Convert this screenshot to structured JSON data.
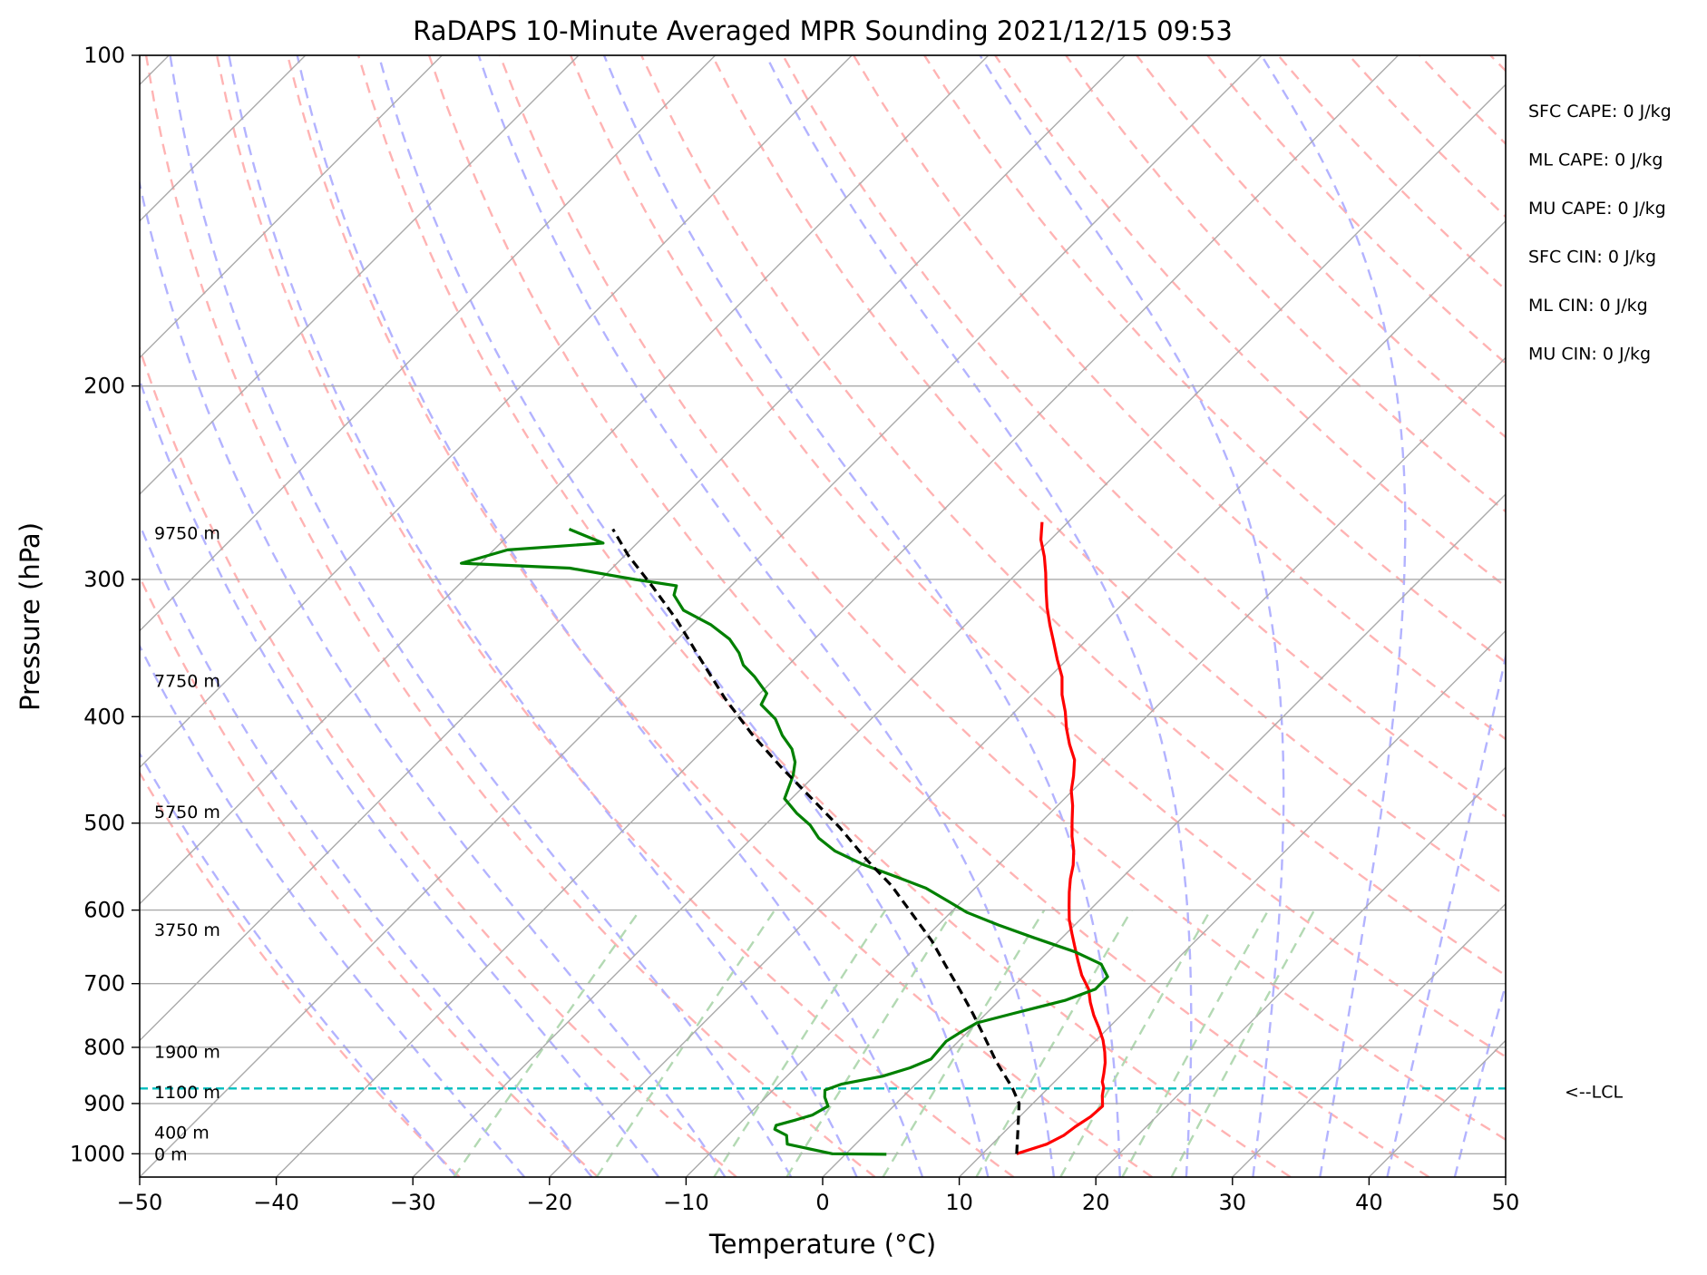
{
  "chart_data": {
    "type": "line",
    "title": "RaDAPS 10-Minute Averaged MPR Sounding 2021/12/15 09:53",
    "xlabel": "Temperature (°C)",
    "ylabel": "Pressure (hPa)",
    "xlim": [
      -50,
      50
    ],
    "ylim": [
      1050,
      100
    ],
    "y_scale": "log",
    "skew_t": true,
    "grid": true,
    "x_ticks": [
      -50,
      -40,
      -30,
      -20,
      -10,
      0,
      10,
      20,
      30,
      40,
      50
    ],
    "x_tick_labels": [
      "−50",
      "−40",
      "−30",
      "−20",
      "−10",
      "0",
      "10",
      "20",
      "30",
      "40",
      "50"
    ],
    "y_ticks": [
      1000,
      900,
      800,
      700,
      600,
      500,
      400,
      300,
      200,
      100
    ],
    "y_tick_labels": [
      "1000",
      "900",
      "800",
      "700",
      "600",
      "500",
      "400",
      "300",
      "200",
      "100"
    ],
    "series": [
      {
        "kind": "temperature",
        "color": "#ff0000",
        "points": [
          [
            12.5,
            1000
          ],
          [
            14.0,
            980
          ],
          [
            14.6,
            962
          ],
          [
            14.8,
            945
          ],
          [
            15.2,
            925
          ],
          [
            15.3,
            905
          ],
          [
            14.5,
            885
          ],
          [
            14.0,
            870
          ],
          [
            13.5,
            860
          ],
          [
            13.0,
            845
          ],
          [
            12.3,
            826
          ],
          [
            11.5,
            808
          ],
          [
            10.5,
            788
          ],
          [
            9.3,
            768
          ],
          [
            8.0,
            748
          ],
          [
            6.8,
            728
          ],
          [
            5.7,
            708
          ],
          [
            4.2,
            688
          ],
          [
            2.9,
            668
          ],
          [
            1.6,
            648
          ],
          [
            0.4,
            630
          ],
          [
            -0.8,
            612
          ],
          [
            -1.8,
            595
          ],
          [
            -2.8,
            578
          ],
          [
            -3.7,
            562
          ],
          [
            -4.5,
            546
          ],
          [
            -5.5,
            530
          ],
          [
            -6.7,
            514
          ],
          [
            -7.8,
            498
          ],
          [
            -8.9,
            482
          ],
          [
            -10.1,
            467
          ],
          [
            -11.0,
            453
          ],
          [
            -12.1,
            438
          ],
          [
            -13.6,
            424
          ],
          [
            -15.0,
            410
          ],
          [
            -16.3,
            396
          ],
          [
            -17.8,
            382
          ],
          [
            -19.1,
            368
          ],
          [
            -20.7,
            355
          ],
          [
            -22.4,
            341
          ],
          [
            -23.8,
            330
          ],
          [
            -25.3,
            318
          ],
          [
            -26.6,
            307
          ],
          [
            -27.9,
            296
          ],
          [
            -29.2,
            286
          ],
          [
            -30.7,
            276
          ],
          [
            -31.9,
            266
          ]
        ]
      },
      {
        "kind": "dewpoint",
        "color": "#008000",
        "points": [
          [
            3.0,
            1001
          ],
          [
            -1.0,
            1000
          ],
          [
            -5.0,
            980
          ],
          [
            -5.7,
            962
          ],
          [
            -7.0,
            950
          ],
          [
            -7.2,
            942
          ],
          [
            -6.2,
            932
          ],
          [
            -5.3,
            922
          ],
          [
            -4.8,
            905
          ],
          [
            -5.7,
            888
          ],
          [
            -6.2,
            875
          ],
          [
            -5.4,
            864
          ],
          [
            -3.0,
            850
          ],
          [
            -1.6,
            835
          ],
          [
            -0.7,
            820
          ],
          [
            -0.8,
            805
          ],
          [
            -0.9,
            790
          ],
          [
            -0.5,
            775
          ],
          [
            0.0,
            760
          ],
          [
            2.0,
            745
          ],
          [
            4.8,
            725
          ],
          [
            6.2,
            708
          ],
          [
            6.2,
            690
          ],
          [
            4.8,
            672
          ],
          [
            2.0,
            655
          ],
          [
            -2.0,
            636
          ],
          [
            -5.6,
            619
          ],
          [
            -8.8,
            603
          ],
          [
            -11.0,
            589
          ],
          [
            -13.6,
            573
          ],
          [
            -16.5,
            560
          ],
          [
            -20.0,
            545
          ],
          [
            -23.0,
            530
          ],
          [
            -25.1,
            516
          ],
          [
            -26.7,
            502
          ],
          [
            -28.5,
            490
          ],
          [
            -30.5,
            475
          ],
          [
            -31.3,
            458
          ],
          [
            -31.6,
            452
          ],
          [
            -32.4,
            440
          ],
          [
            -33.6,
            428
          ],
          [
            -35.3,
            416
          ],
          [
            -37.0,
            402
          ],
          [
            -39.1,
            390
          ],
          [
            -39.5,
            381
          ],
          [
            -41.6,
            368
          ],
          [
            -43.3,
            359
          ],
          [
            -44.5,
            350
          ],
          [
            -46.2,
            340
          ],
          [
            -48.6,
            330
          ],
          [
            -51.7,
            320
          ],
          [
            -53.5,
            310
          ],
          [
            -54.0,
            304
          ],
          [
            -57.5,
            300
          ],
          [
            -63.1,
            293
          ],
          [
            -71.4,
            290
          ],
          [
            -69.0,
            282
          ],
          [
            -62.5,
            278
          ],
          [
            -66.0,
            270
          ]
        ]
      },
      {
        "kind": "parcel",
        "color": "#000000",
        "dashed": true,
        "points": [
          [
            12.5,
            1000
          ],
          [
            10.8,
            950
          ],
          [
            9.0,
            900
          ],
          [
            7.3,
            870
          ],
          [
            4.3,
            825
          ],
          [
            1.4,
            780
          ],
          [
            -1.0,
            745
          ],
          [
            -3.6,
            710
          ],
          [
            -6.4,
            675
          ],
          [
            -9.3,
            640
          ],
          [
            -12.7,
            605
          ],
          [
            -16.3,
            570
          ],
          [
            -20.0,
            540
          ],
          [
            -24.3,
            505
          ],
          [
            -28.5,
            475
          ],
          [
            -33.0,
            445
          ],
          [
            -37.6,
            415
          ],
          [
            -42.2,
            385
          ],
          [
            -46.8,
            355
          ],
          [
            -51.4,
            327
          ],
          [
            -55.6,
            305
          ],
          [
            -59.8,
            285
          ],
          [
            -62.8,
            270
          ]
        ]
      }
    ],
    "height_labels": [
      {
        "label": "9750 m",
        "pressure": 272
      },
      {
        "label": "7750 m",
        "pressure": 371
      },
      {
        "label": "5750 m",
        "pressure": 488
      },
      {
        "label": "3750 m",
        "pressure": 625
      },
      {
        "label": "1900 m",
        "pressure": 807
      },
      {
        "label": "1100 m",
        "pressure": 878
      },
      {
        "label": "400 m",
        "pressure": 956
      },
      {
        "label": "0 m",
        "pressure": 1000
      }
    ],
    "lcl": {
      "pressure": 872,
      "label": "<--LCL",
      "color": "#00bfbf"
    },
    "indices": [
      "SFC CAPE: 0 J/kg",
      "ML CAPE: 0 J/kg",
      "MU CAPE: 0 J/kg",
      "SFC CIN: 0 J/kg",
      "ML CIN: 0 J/kg",
      "MU CIN: 0 J/kg"
    ],
    "colors": {
      "temperature": "#ff0000",
      "dewpoint": "#008000",
      "parcel": "#000000",
      "isotherm": "#aaaaaa",
      "dry_adiabat": "#ffb3b3",
      "moist_adiabat": "#b3b3ff",
      "mixing_ratio": "#b3d9b3",
      "lcl": "#00bfbf"
    }
  }
}
